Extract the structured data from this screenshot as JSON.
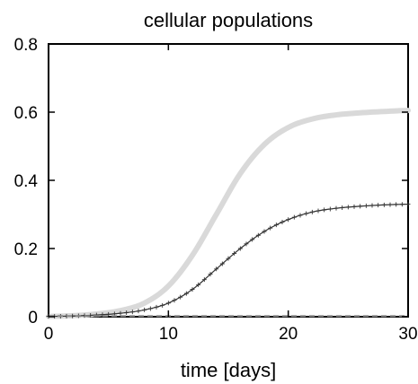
{
  "chart_data": {
    "type": "line",
    "title": "cellular populations",
    "xlabel": "time [days]",
    "ylabel": "",
    "xlim": [
      0,
      30
    ],
    "ylim": [
      0,
      0.8
    ],
    "xticks": [
      "0",
      "10",
      "20",
      "30"
    ],
    "yticks": [
      "0",
      "0.2",
      "0.4",
      "0.6",
      "0.8"
    ],
    "grid": false,
    "legend": "none",
    "series": [
      {
        "style": "thick-light-gray",
        "color": "#d9d9d9",
        "x": [
          0,
          2,
          4,
          6,
          8,
          10,
          12,
          14,
          16,
          18,
          20,
          22,
          24,
          26,
          28,
          30
        ],
        "y": [
          0.001,
          0.003,
          0.008,
          0.018,
          0.04,
          0.09,
          0.18,
          0.3,
          0.42,
          0.505,
          0.555,
          0.58,
          0.592,
          0.598,
          0.602,
          0.605
        ]
      },
      {
        "style": "thin-black-plus-markers",
        "color": "#333333",
        "x": [
          0,
          2,
          4,
          6,
          8,
          10,
          12,
          14,
          16,
          18,
          20,
          22,
          24,
          26,
          28,
          30
        ],
        "y": [
          0.001,
          0.002,
          0.005,
          0.01,
          0.02,
          0.04,
          0.08,
          0.14,
          0.2,
          0.25,
          0.285,
          0.307,
          0.318,
          0.324,
          0.328,
          0.33
        ]
      },
      {
        "style": "dashed-gray-baseline",
        "color": "#888888",
        "x": [
          0,
          30
        ],
        "y": [
          0.002,
          0.002
        ]
      }
    ]
  }
}
